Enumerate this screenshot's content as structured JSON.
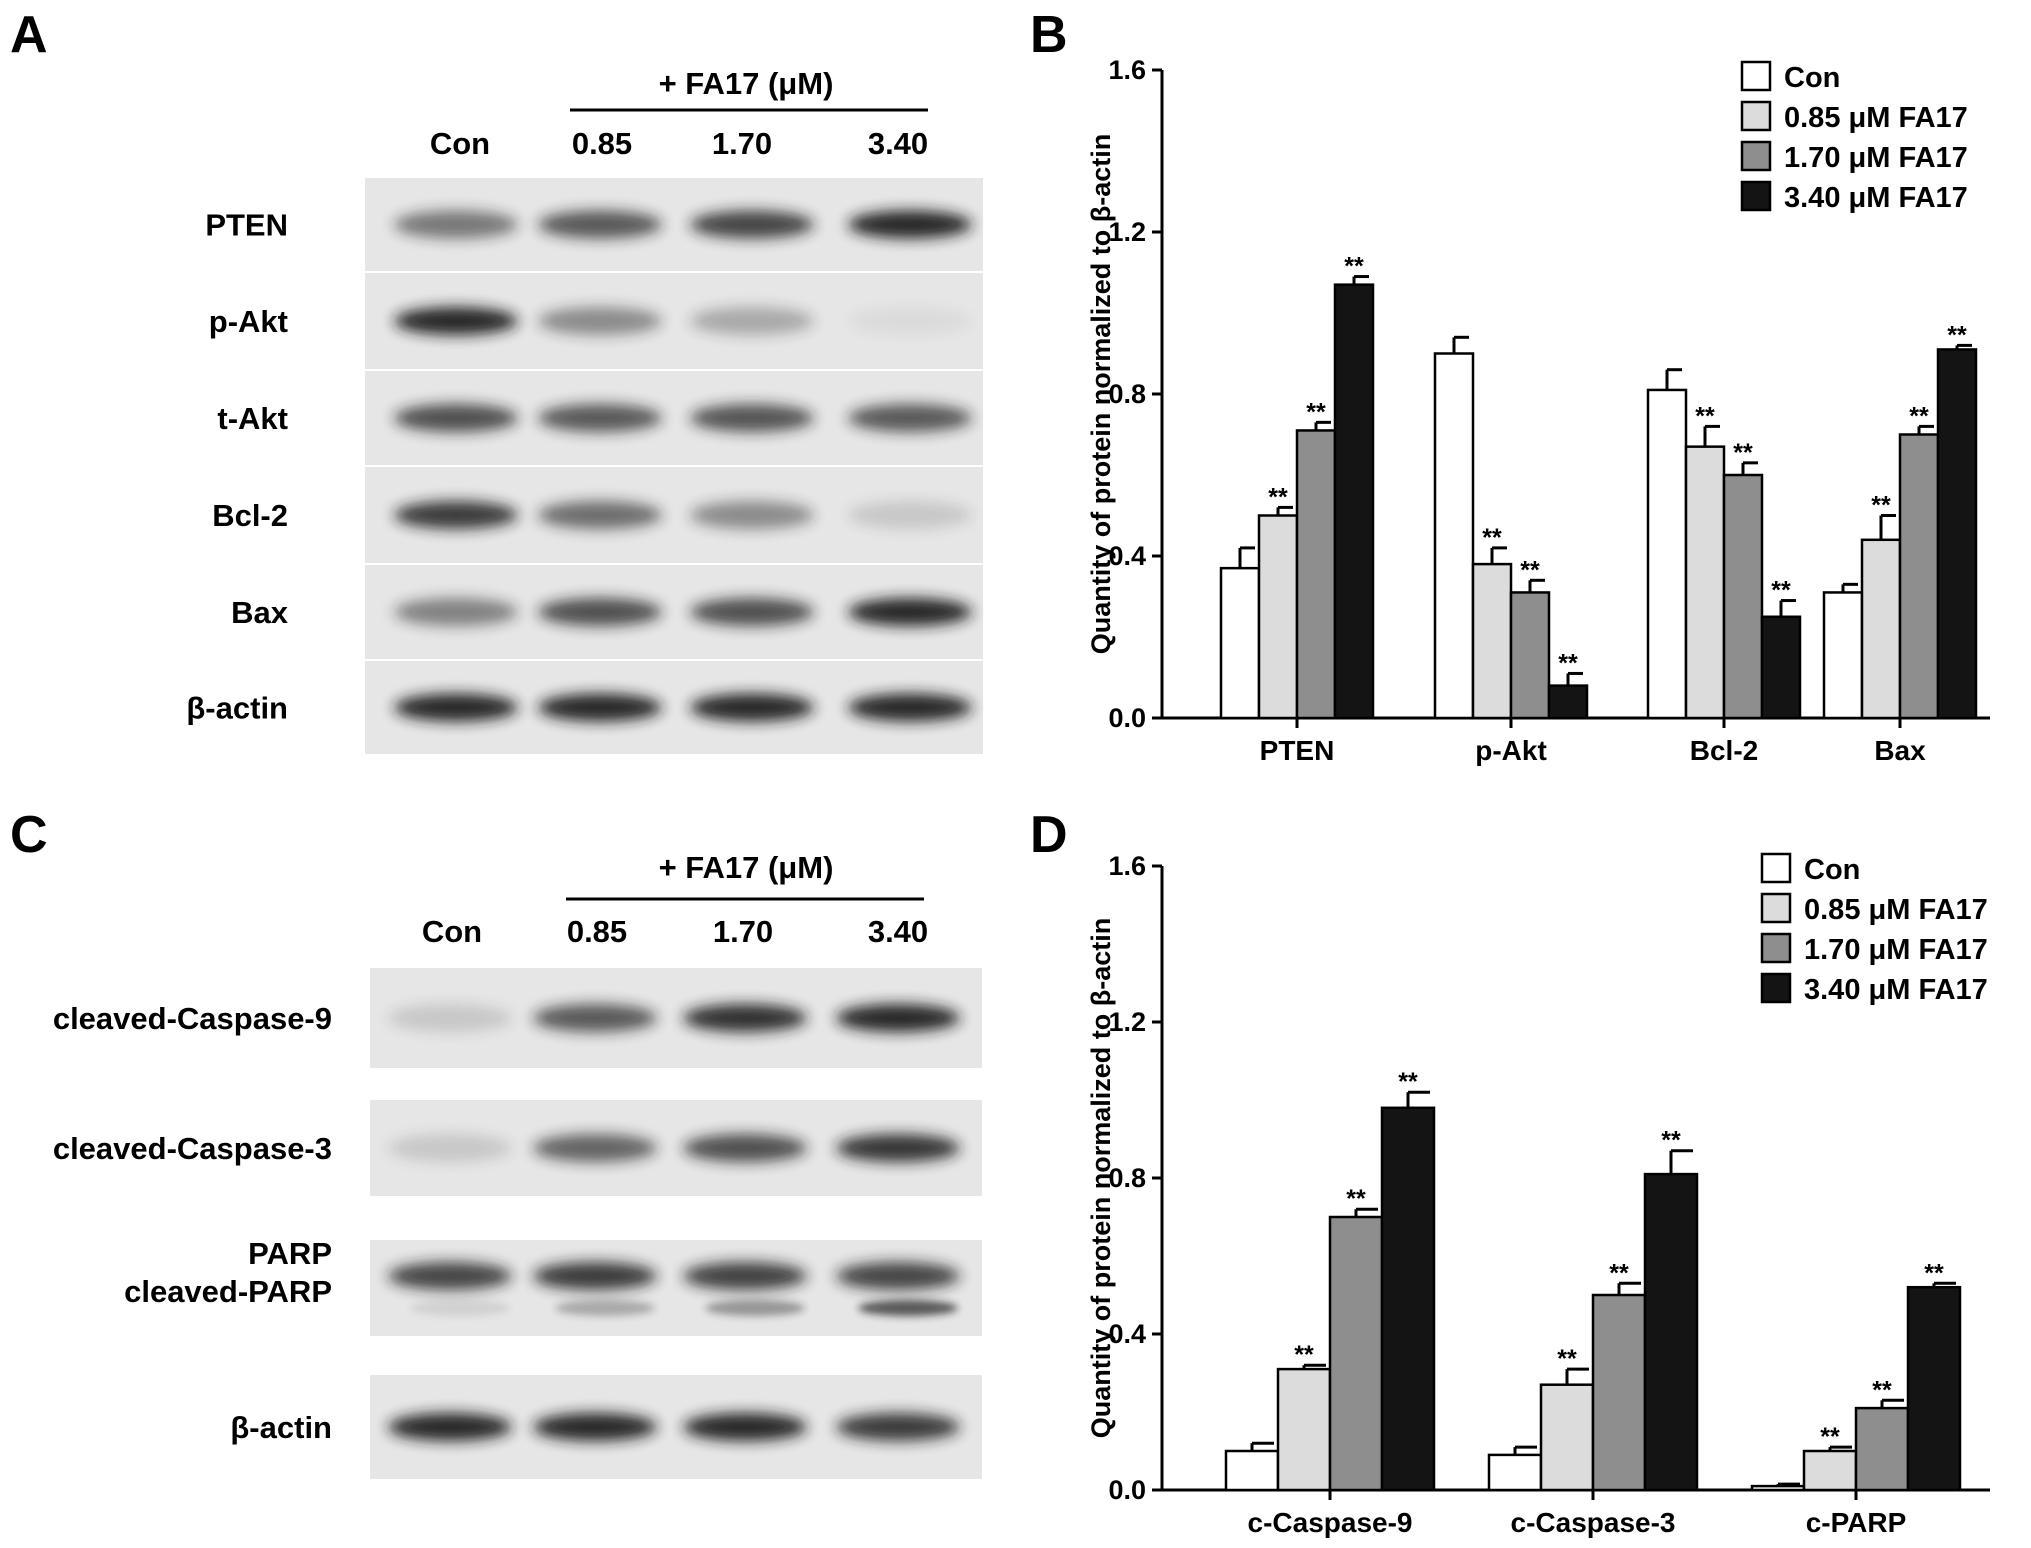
{
  "panel_letters": {
    "a": "A",
    "b": "B",
    "c": "C",
    "d": "D"
  },
  "colors": {
    "con": "#ffffff",
    "fa17_085": "#dcdcdc",
    "fa17_170": "#8e8e8e",
    "fa17_340": "#141414",
    "blot_background": "#e6e6e6",
    "band": "#1c1c1c"
  },
  "blot_a": {
    "treatment_label": "+ FA17 (μM)",
    "lanes": [
      "Con",
      "0.85",
      "1.70",
      "3.40"
    ],
    "rows": [
      {
        "label": "PTEN",
        "intensity": [
          0.55,
          0.7,
          0.8,
          0.95
        ]
      },
      {
        "label": "p-Akt",
        "intensity": [
          0.95,
          0.45,
          0.3,
          0.05
        ]
      },
      {
        "label": "t-Akt",
        "intensity": [
          0.75,
          0.7,
          0.72,
          0.7
        ]
      },
      {
        "label": "Bcl-2",
        "intensity": [
          0.85,
          0.6,
          0.45,
          0.15
        ]
      },
      {
        "label": "Bax",
        "intensity": [
          0.5,
          0.75,
          0.75,
          0.95
        ]
      },
      {
        "label": "β-actin",
        "intensity": [
          0.95,
          0.95,
          0.95,
          0.95
        ]
      }
    ]
  },
  "blot_c": {
    "treatment_label": "+ FA17 (μM)",
    "lanes": [
      "Con",
      "0.85",
      "1.70",
      "3.40"
    ],
    "rows": [
      {
        "label": "cleaved-Caspase-9",
        "intensity": [
          0.15,
          0.7,
          0.9,
          0.95
        ]
      },
      {
        "label": "cleaved-Caspase-3",
        "intensity": [
          0.15,
          0.65,
          0.75,
          0.88
        ]
      },
      {
        "label": "PARP",
        "label2": "cleaved-PARP",
        "intensity": [
          0.8,
          0.85,
          0.82,
          0.8
        ],
        "lower_intensity": [
          0.1,
          0.3,
          0.4,
          0.7
        ]
      },
      {
        "label": "β-actin",
        "intensity": [
          0.95,
          0.95,
          0.95,
          0.85
        ]
      }
    ]
  },
  "chart_data": [
    {
      "type": "bar",
      "panel": "B",
      "categories": [
        "PTEN",
        "p-Akt",
        "Bcl-2",
        "Bax"
      ],
      "ylabel": "Quantity of protein normalized to β-actin",
      "xlabel": "",
      "ylim": [
        0,
        1.6
      ],
      "yticks": [
        "0.0",
        "0.4",
        "0.8",
        "1.2",
        "1.6"
      ],
      "legend_position": "top-right",
      "significance_label": "**",
      "series": [
        {
          "name": "Con",
          "color": "#ffffff",
          "values": [
            0.37,
            0.9,
            0.81,
            0.31
          ],
          "errors": [
            0.05,
            0.04,
            0.05,
            0.02
          ],
          "significant": [
            false,
            false,
            false,
            false
          ]
        },
        {
          "name": "0.85 μM FA17",
          "color": "#dcdcdc",
          "values": [
            0.5,
            0.38,
            0.67,
            0.44
          ],
          "errors": [
            0.02,
            0.04,
            0.05,
            0.06
          ],
          "significant": [
            true,
            true,
            true,
            true
          ]
        },
        {
          "name": "1.70 μM FA17",
          "color": "#8e8e8e",
          "values": [
            0.71,
            0.31,
            0.6,
            0.7
          ],
          "errors": [
            0.02,
            0.03,
            0.03,
            0.02
          ],
          "significant": [
            true,
            true,
            true,
            true
          ]
        },
        {
          "name": "3.40 μM FA17",
          "color": "#141414",
          "values": [
            1.07,
            0.08,
            0.25,
            0.91
          ],
          "errors": [
            0.02,
            0.03,
            0.04,
            0.01
          ],
          "significant": [
            true,
            true,
            true,
            true
          ]
        }
      ]
    },
    {
      "type": "bar",
      "panel": "D",
      "categories": [
        "c-Caspase-9",
        "c-Caspase-3",
        "c-PARP"
      ],
      "ylabel": "Quantity of protein normalized to β-actin",
      "xlabel": "",
      "ylim": [
        0,
        1.6
      ],
      "yticks": [
        "0.0",
        "0.4",
        "0.8",
        "1.2",
        "1.6"
      ],
      "legend_position": "top-right",
      "significance_label": "**",
      "series": [
        {
          "name": "Con",
          "color": "#ffffff",
          "values": [
            0.1,
            0.09,
            0.01
          ],
          "errors": [
            0.02,
            0.02,
            0.005
          ],
          "significant": [
            false,
            false,
            false
          ]
        },
        {
          "name": "0.85 μM FA17",
          "color": "#dcdcdc",
          "values": [
            0.31,
            0.27,
            0.1
          ],
          "errors": [
            0.01,
            0.04,
            0.01
          ],
          "significant": [
            true,
            true,
            true
          ]
        },
        {
          "name": "1.70 μM FA17",
          "color": "#8e8e8e",
          "values": [
            0.7,
            0.5,
            0.21
          ],
          "errors": [
            0.02,
            0.03,
            0.02
          ],
          "significant": [
            true,
            true,
            true
          ]
        },
        {
          "name": "3.40 μM FA17",
          "color": "#141414",
          "values": [
            0.98,
            0.81,
            0.52
          ],
          "errors": [
            0.04,
            0.06,
            0.01
          ],
          "significant": [
            true,
            true,
            true
          ]
        }
      ]
    }
  ]
}
